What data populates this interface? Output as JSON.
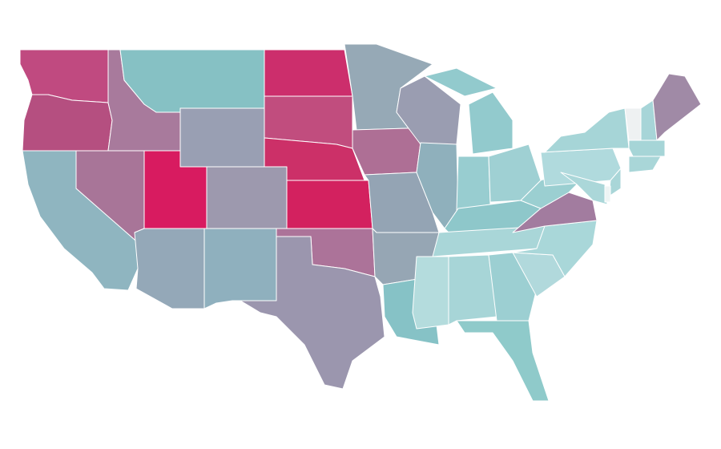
{
  "map": {
    "regions": [
      {
        "color": "#c04a80"
      },
      {
        "color": "#b54f80"
      },
      {
        "color": "#8fb5c0"
      },
      {
        "color": "#a87598"
      },
      {
        "color": "#a87a9c"
      },
      {
        "color": "#86c1c4"
      },
      {
        "color": "#999fb3"
      },
      {
        "color": "#d81b60"
      },
      {
        "color": "#9d99ae"
      },
      {
        "color": "#94a8b8"
      },
      {
        "color": "#8fb0be"
      },
      {
        "color": "#cc2e6c"
      },
      {
        "color": "#c14d7e"
      },
      {
        "color": "#cc3068"
      },
      {
        "color": "#d3215f"
      },
      {
        "color": "#ac7399"
      },
      {
        "color": "#9b96ae"
      },
      {
        "color": "#96a9b6"
      },
      {
        "color": "#ae6f95"
      },
      {
        "color": "#94a4b4"
      },
      {
        "color": "#96a6b4"
      },
      {
        "color": "#86c2c6"
      },
      {
        "color": "#9a9db1"
      },
      {
        "color": "#8fb0bc"
      },
      {
        "color": "#92cacd"
      },
      {
        "color": "#92cacd"
      },
      {
        "color": "#98cdd0"
      },
      {
        "color": "#9fd0d3"
      },
      {
        "color": "#8ec7ca"
      },
      {
        "color": "#a9d6d8"
      },
      {
        "color": "#b4dcdd"
      },
      {
        "color": "#a7d5d7"
      },
      {
        "color": "#9ccfd2"
      },
      {
        "color": "#8fcaca"
      },
      {
        "color": "#b1d9dc"
      },
      {
        "color": "#a9d7d9"
      },
      {
        "color": "#a27c9f"
      },
      {
        "color": "#9bcfd1"
      },
      {
        "color": "#b0dadd"
      },
      {
        "color": "#a6d5d7"
      },
      {
        "color": "#eef1f2"
      },
      {
        "color": "#a7d5d8"
      },
      {
        "color": "#a08aa6"
      },
      {
        "color": "#a6d5d7"
      },
      {
        "color": "#a9d6d8"
      },
      {
        "color": "#a9d6d8"
      },
      {
        "color": "#abd7d9"
      },
      {
        "color": "#eef4f4"
      }
    ]
  }
}
